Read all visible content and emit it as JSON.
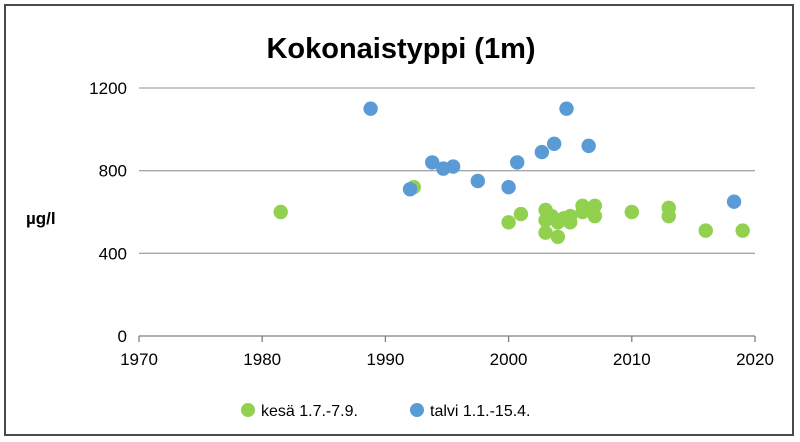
{
  "chart_data": {
    "type": "scatter",
    "title": "Kokonaistyppi (1m)",
    "xlabel": "",
    "ylabel": "µg/l",
    "xlim": [
      1970,
      2020
    ],
    "ylim": [
      0,
      1200
    ],
    "x_ticks": [
      1970,
      1980,
      1990,
      2000,
      2010,
      2020
    ],
    "y_ticks": [
      0,
      400,
      800,
      1200
    ],
    "grid": "horizontal",
    "legend_position": "bottom",
    "series": [
      {
        "name": "kesä 1.7.-7.9.",
        "color": "#92d050",
        "points": [
          [
            1981.5,
            600
          ],
          [
            1992.3,
            720
          ],
          [
            2000,
            550
          ],
          [
            2001,
            590
          ],
          [
            2003,
            610
          ],
          [
            2003,
            560
          ],
          [
            2003,
            500
          ],
          [
            2003.5,
            580
          ],
          [
            2004,
            480
          ],
          [
            2004,
            550
          ],
          [
            2004.5,
            570
          ],
          [
            2005,
            550
          ],
          [
            2005,
            580
          ],
          [
            2006,
            630
          ],
          [
            2006,
            600
          ],
          [
            2007,
            630
          ],
          [
            2007,
            580
          ],
          [
            2010,
            600
          ],
          [
            2013,
            620
          ],
          [
            2013,
            580
          ],
          [
            2016,
            510
          ],
          [
            2019,
            510
          ]
        ]
      },
      {
        "name": "talvi 1.1.-15.4.",
        "color": "#5b9bd5",
        "points": [
          [
            1988.8,
            1100
          ],
          [
            1992,
            710
          ],
          [
            1993.8,
            840
          ],
          [
            1994.7,
            810
          ],
          [
            1995.5,
            820
          ],
          [
            1997.5,
            750
          ],
          [
            2000,
            720
          ],
          [
            2000.7,
            840
          ],
          [
            2002.7,
            890
          ],
          [
            2003.7,
            930
          ],
          [
            2004.7,
            1100
          ],
          [
            2006.5,
            920
          ],
          [
            2018.3,
            650
          ]
        ]
      }
    ]
  }
}
